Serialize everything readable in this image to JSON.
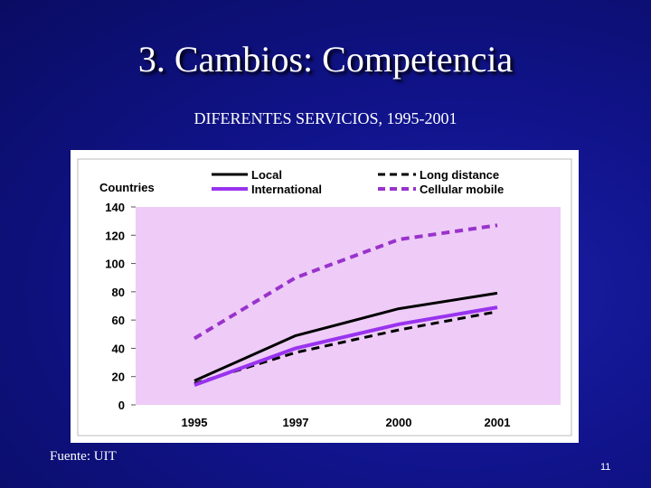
{
  "slide": {
    "title": "3. Cambios: Competencia",
    "subtitle": "DIFERENTES SERVICIOS, 1995-2001",
    "source": "Fuente: UIT",
    "page_number": "11"
  },
  "colors": {
    "background": "#10138a",
    "plot_area": "#eeccf7",
    "local": "#000000",
    "long_distance": "#000000",
    "international": "#9933ee",
    "cellular_mobile": "#9933cc"
  },
  "chart_data": {
    "type": "line",
    "ylabel": "Countries",
    "categories": [
      "1995",
      "1997",
      "2000",
      "2001"
    ],
    "ylim": [
      0,
      140
    ],
    "yticks": [
      "0",
      "20",
      "40",
      "60",
      "80",
      "100",
      "120",
      "140"
    ],
    "grid": false,
    "legend_position": "top",
    "series": [
      {
        "name": "Local",
        "values": [
          17,
          49,
          68,
          79
        ],
        "style": "solid",
        "color": "#000000"
      },
      {
        "name": "Long distance",
        "values": [
          15,
          37,
          53,
          66
        ],
        "style": "dashed",
        "color": "#000000"
      },
      {
        "name": "International",
        "values": [
          14,
          40,
          57,
          69
        ],
        "style": "solid",
        "color": "#9933ee"
      },
      {
        "name": "Cellular mobile",
        "values": [
          47,
          90,
          117,
          127
        ],
        "style": "dashed",
        "color": "#9933cc"
      }
    ]
  }
}
